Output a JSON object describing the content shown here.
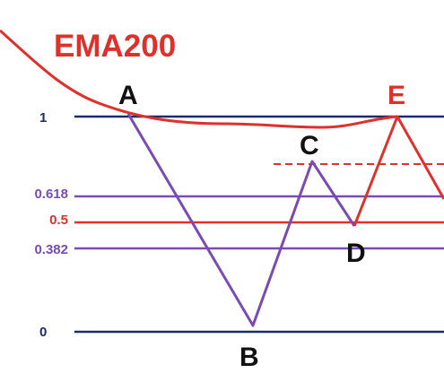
{
  "title": {
    "text": "EMA200",
    "color": "#e0302b"
  },
  "levels": [
    {
      "id": "level-1",
      "label": "1",
      "color": "#1c2a6e"
    },
    {
      "id": "level-0618",
      "label": "0.618",
      "color": "#7a4bb4"
    },
    {
      "id": "level-05",
      "label": "0.5",
      "color": "#e0302b"
    },
    {
      "id": "level-0382",
      "label": "0.382",
      "color": "#7a4bb4"
    },
    {
      "id": "level-0",
      "label": "0",
      "color": "#1c2a6e"
    }
  ],
  "points": [
    {
      "id": "A",
      "label": "A",
      "color": "#111111"
    },
    {
      "id": "B",
      "label": "B",
      "color": "#111111"
    },
    {
      "id": "C",
      "label": "C",
      "color": "#111111"
    },
    {
      "id": "D",
      "label": "D",
      "color": "#111111"
    },
    {
      "id": "E",
      "label": "E",
      "color": "#e0302b"
    }
  ],
  "colors": {
    "ema_line": "#e0302b",
    "wave_path": "#7a4bb4",
    "breakout_path": "#e0302b",
    "resistance_dashed": "#e0302b"
  }
}
